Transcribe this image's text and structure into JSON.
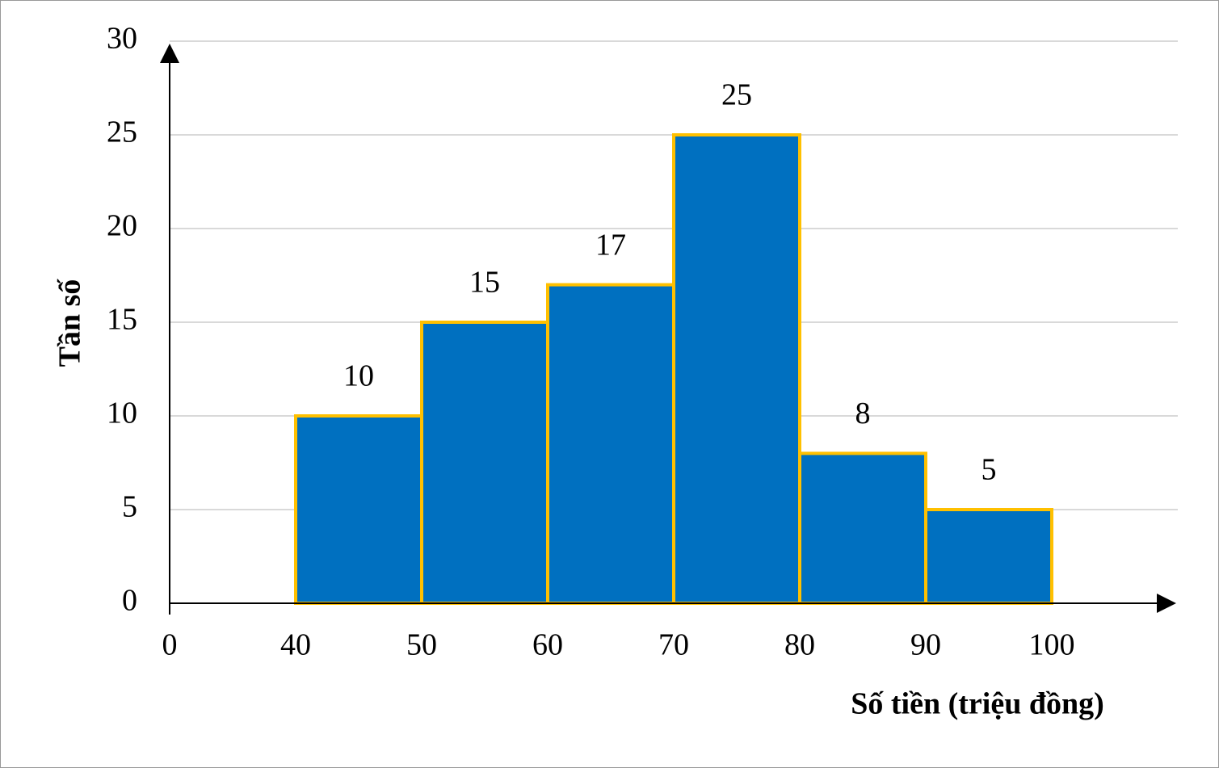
{
  "chart_data": {
    "type": "histogram",
    "x_label": "Số tiền (triệu đồng)",
    "y_label": "Tần số",
    "bins": [
      40,
      50,
      60,
      70,
      80,
      90,
      100
    ],
    "values": [
      10,
      15,
      17,
      25,
      8,
      5
    ],
    "color": "#0070c0",
    "edge_color": "#ffc000",
    "xticks": [
      0,
      40,
      50,
      60,
      70,
      80,
      90,
      100
    ],
    "ylim": [
      0,
      30
    ],
    "yticks": [
      0,
      5,
      10,
      15,
      20,
      25,
      30
    ],
    "grid": true
  }
}
